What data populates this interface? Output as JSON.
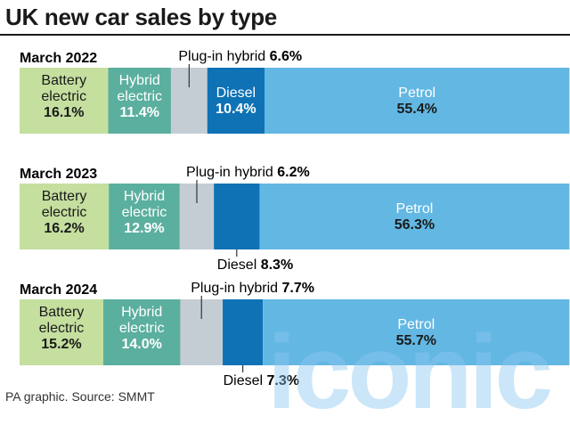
{
  "title": "UK new car sales by type",
  "source": "PA graphic. Source: SMMT",
  "watermark": "iconic",
  "colors": {
    "Battery electric": "#c5df9f",
    "Hybrid electric": "#5baf9f",
    "Plug-in hybrid": "#c5cdd4",
    "Diesel": "#0e72b5",
    "Petrol": "#63b7e3"
  },
  "chart_data": {
    "type": "bar",
    "orientation": "horizontal-stacked-100",
    "categories": [
      "March 2022",
      "March 2023",
      "March 2024"
    ],
    "series": [
      {
        "name": "Battery electric",
        "label_lines": [
          "Battery",
          "electric"
        ],
        "values": [
          16.1,
          16.2,
          15.2
        ]
      },
      {
        "name": "Hybrid electric",
        "label_lines": [
          "Hybrid",
          "electric"
        ],
        "values": [
          11.4,
          12.9,
          14.0
        ]
      },
      {
        "name": "Plug-in hybrid",
        "values": [
          6.6,
          6.2,
          7.7
        ]
      },
      {
        "name": "Diesel",
        "values": [
          10.4,
          8.3,
          7.3
        ]
      },
      {
        "name": "Petrol",
        "values": [
          55.4,
          56.3,
          55.7
        ]
      }
    ],
    "value_suffix": "%"
  }
}
